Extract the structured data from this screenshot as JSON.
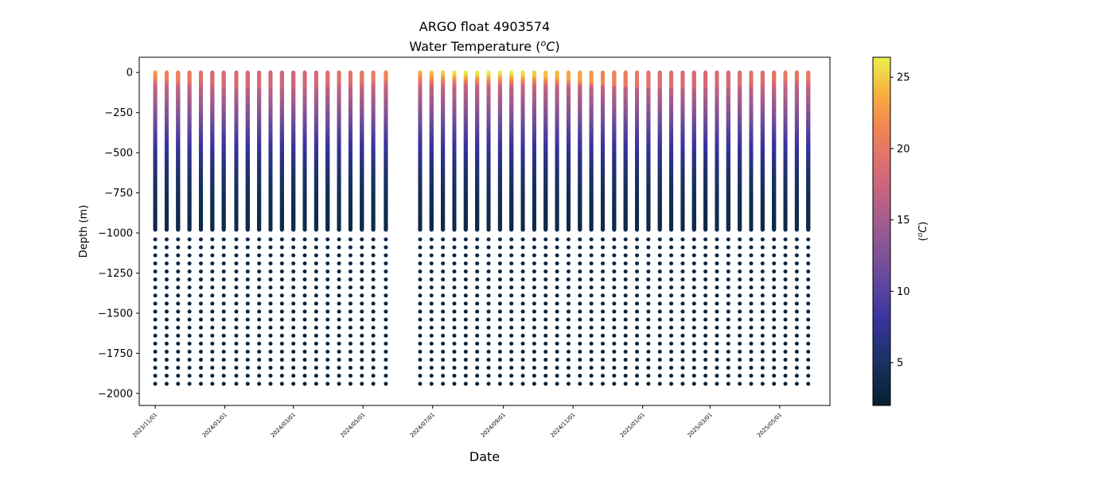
{
  "figure": {
    "title_line1": "ARGO float 4903574",
    "title_line2": "Water Temperature (",
    "title_unit": "o",
    "title_unit_c": "C",
    "title_close": ")"
  },
  "chart_data": {
    "type": "scatter",
    "xlabel": "Date",
    "ylabel": "Depth (m)",
    "x_scale": "date",
    "xlim": [
      "2023-10-18",
      "2025-06-14"
    ],
    "ylim": [
      -2075,
      95
    ],
    "grid": false,
    "x_ticks": [
      {
        "date": "2023-11-01",
        "label": "2023/11/01"
      },
      {
        "date": "2024-01-01",
        "label": "2024/01/01"
      },
      {
        "date": "2024-03-01",
        "label": "2024/03/01"
      },
      {
        "date": "2024-05-01",
        "label": "2024/05/01"
      },
      {
        "date": "2024-07-01",
        "label": "2024/07/01"
      },
      {
        "date": "2024-09-01",
        "label": "2024/09/01"
      },
      {
        "date": "2024-11-01",
        "label": "2024/11/01"
      },
      {
        "date": "2025-01-01",
        "label": "2025/01/01"
      },
      {
        "date": "2025-03-01",
        "label": "2025/03/01"
      },
      {
        "date": "2025-05-01",
        "label": "2025/05/01"
      }
    ],
    "y_ticks": [
      {
        "value": 0,
        "label": "0"
      },
      {
        "value": -250,
        "label": "−250"
      },
      {
        "value": -500,
        "label": "−500"
      },
      {
        "value": -750,
        "label": "−750"
      },
      {
        "value": -1000,
        "label": "−1000"
      },
      {
        "value": -1250,
        "label": "−1250"
      },
      {
        "value": -1500,
        "label": "−1500"
      },
      {
        "value": -1750,
        "label": "−1750"
      },
      {
        "value": -2000,
        "label": "−2000"
      }
    ],
    "profile_dates": [
      "2023-11-01",
      "2023-11-11",
      "2023-11-21",
      "2023-12-01",
      "2023-12-11",
      "2023-12-21",
      "2023-12-31",
      "2024-01-11",
      "2024-01-21",
      "2024-01-31",
      "2024-02-10",
      "2024-02-20",
      "2024-03-01",
      "2024-03-11",
      "2024-03-21",
      "2024-03-31",
      "2024-04-10",
      "2024-04-20",
      "2024-04-30",
      "2024-05-10",
      "2024-05-21",
      "2024-06-20",
      "2024-06-30",
      "2024-07-10",
      "2024-07-20",
      "2024-07-30",
      "2024-08-09",
      "2024-08-19",
      "2024-08-29",
      "2024-09-08",
      "2024-09-18",
      "2024-09-28",
      "2024-10-08",
      "2024-10-18",
      "2024-10-28",
      "2024-11-07",
      "2024-11-17",
      "2024-11-27",
      "2024-12-07",
      "2024-12-17",
      "2024-12-27",
      "2025-01-06",
      "2025-01-16",
      "2025-01-26",
      "2025-02-05",
      "2025-02-15",
      "2025-02-25",
      "2025-03-07",
      "2025-03-17",
      "2025-03-27",
      "2025-04-06",
      "2025-04-16",
      "2025-04-26",
      "2025-05-06",
      "2025-05-16",
      "2025-05-26"
    ],
    "surface_temperature_c": [
      22.5,
      21.5,
      21,
      20,
      19,
      18.5,
      18.5,
      18.5,
      18.5,
      18.5,
      18,
      18,
      18,
      18,
      18.5,
      19,
      19,
      19.5,
      20,
      20.5,
      21.5,
      23.5,
      24.5,
      25,
      25.5,
      26,
      26,
      26,
      26,
      26,
      25.5,
      25,
      24.5,
      24,
      23.5,
      23,
      22.5,
      21.5,
      21,
      20.5,
      20,
      19.5,
      19,
      19,
      18.5,
      18.5,
      18.5,
      18.5,
      18.5,
      19,
      19,
      19,
      19.5,
      20,
      20,
      20.5
    ],
    "mixed_layer_depth_m": [
      30,
      40,
      50,
      60,
      70,
      80,
      90,
      95,
      100,
      100,
      100,
      100,
      100,
      95,
      90,
      85,
      80,
      70,
      60,
      50,
      40,
      20,
      20,
      20,
      20,
      20,
      20,
      20,
      20,
      20,
      25,
      30,
      35,
      40,
      50,
      60,
      70,
      80,
      90,
      95,
      100,
      100,
      100,
      100,
      100,
      100,
      100,
      95,
      90,
      85,
      80,
      70,
      60,
      50,
      40,
      30
    ],
    "temperature_profile": {
      "depth_m": [
        0,
        -100,
        -200,
        -300,
        -400,
        -500,
        -600,
        -700,
        -800,
        -900,
        -1000,
        -1250,
        -1500,
        -1750,
        -2000
      ],
      "temp_c": [
        null,
        17,
        14.5,
        12,
        9.5,
        7.5,
        6,
        5,
        4.3,
        3.9,
        3.6,
        3.2,
        2.9,
        2.7,
        2.5
      ]
    },
    "sampling": {
      "upper_step_m": 2,
      "upper_max_depth_m": 980,
      "deep_start_m": 1040,
      "deep_step_m": 50,
      "max_depth_m": 1975
    },
    "colorbar": {
      "label_pre": "(",
      "label_sup": "o",
      "label_c": "C",
      "label_post": ")",
      "vmin": 2.0,
      "vmax": 26.4,
      "colormap": "thermal",
      "colormap_stops": [
        {
          "t": 0.0,
          "color": "#04202e"
        },
        {
          "t": 0.12,
          "color": "#18325f"
        },
        {
          "t": 0.25,
          "color": "#3a34a0"
        },
        {
          "t": 0.38,
          "color": "#6a4c9c"
        },
        {
          "t": 0.52,
          "color": "#a05c8e"
        },
        {
          "t": 0.66,
          "color": "#d5687a"
        },
        {
          "t": 0.8,
          "color": "#f38552"
        },
        {
          "t": 0.9,
          "color": "#f7b13e"
        },
        {
          "t": 1.0,
          "color": "#e9f14e"
        }
      ],
      "ticks": [
        {
          "value": 5,
          "label": "5"
        },
        {
          "value": 10,
          "label": "10"
        },
        {
          "value": 15,
          "label": "15"
        },
        {
          "value": 20,
          "label": "20"
        },
        {
          "value": 25,
          "label": "25"
        }
      ]
    }
  }
}
